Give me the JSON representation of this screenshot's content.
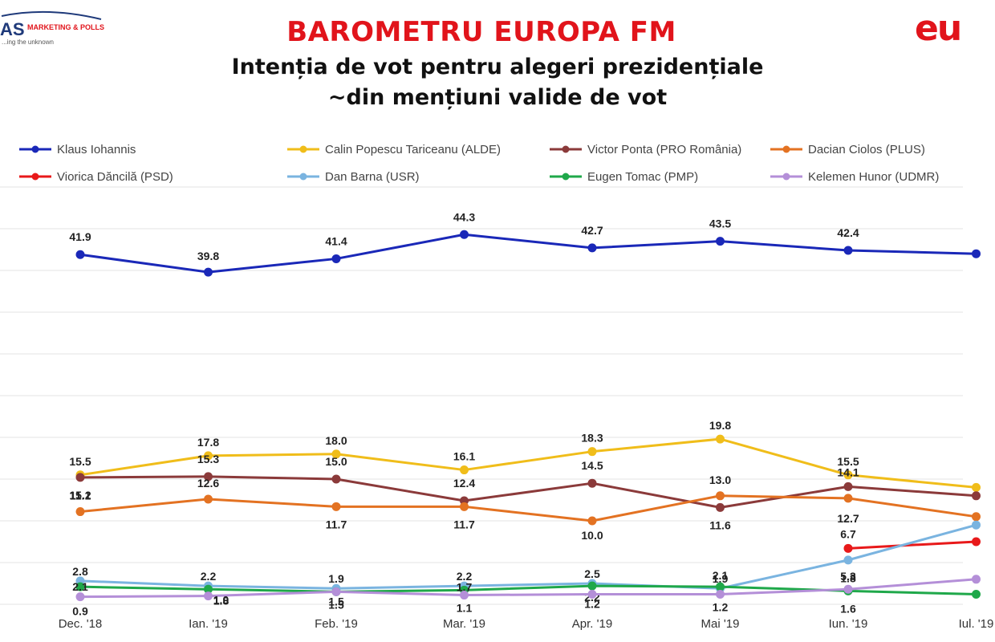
{
  "header": {
    "title": "BAROMETRU EUROPA FM",
    "subtitle_line1": "Intenția de vot pentru alegeri prezidențiale",
    "subtitle_line2": "~din mențiuni valide de vot"
  },
  "logos": {
    "left_text_big": "AS",
    "left_text_small": "MARKETING & POLLS",
    "left_tagline": "...ing the unknown",
    "right_text": "eu"
  },
  "colors": {
    "title": "#e1141b",
    "grid": "#e3e3e3"
  },
  "chart_data": {
    "type": "line",
    "categories": [
      "Dec. '18",
      "Ian. '19",
      "Feb. '19",
      "Mar. '19",
      "Apr. '19",
      "Mai '19",
      "Iun. '19",
      "Iul. '19"
    ],
    "ylim": [
      0,
      50
    ],
    "grid": true,
    "legend_position": "top",
    "series": [
      {
        "name": "Klaus Iohannis",
        "color": "#1a28b8",
        "values": [
          41.9,
          39.8,
          41.4,
          44.3,
          42.7,
          43.5,
          42.4,
          42.0
        ],
        "labels": [
          "41.9",
          "39.8",
          "41.4",
          "44.3",
          "42.7",
          "43.5",
          "42.4",
          null
        ]
      },
      {
        "name": "Calin Popescu Tariceanu (ALDE)",
        "color": "#f0bd1a",
        "values": [
          15.5,
          17.8,
          18.0,
          16.1,
          18.3,
          19.8,
          15.5,
          14.0
        ],
        "labels": [
          "15.5",
          "17.8",
          "18.0",
          "16.1",
          "18.3",
          "19.8",
          "15.5",
          null
        ]
      },
      {
        "name": "Victor Ponta (PRO România)",
        "color": "#8b3a3a",
        "values": [
          15.2,
          15.3,
          15.0,
          12.4,
          14.5,
          11.6,
          14.1,
          13.0
        ],
        "labels": [
          "15.2",
          "15.3",
          "15.0",
          "12.4",
          "14.5",
          "11.6",
          "14.1",
          null
        ]
      },
      {
        "name": "Dacian Ciolos (PLUS)",
        "color": "#e37222",
        "values": [
          11.1,
          12.6,
          11.7,
          11.7,
          10.0,
          13.0,
          12.7,
          10.5
        ],
        "labels": [
          "11.1",
          "12.6",
          "11.7",
          "11.7",
          "10.0",
          "13.0",
          "12.7",
          null
        ]
      },
      {
        "name": "Viorica Dăncilă (PSD)",
        "color": "#e8191a",
        "values": [
          null,
          null,
          null,
          null,
          null,
          null,
          6.7,
          7.5
        ],
        "labels": [
          null,
          null,
          null,
          null,
          null,
          null,
          "6.7",
          null
        ]
      },
      {
        "name": "Dan Barna (USR)",
        "color": "#7ab4e0",
        "values": [
          2.8,
          2.2,
          1.9,
          2.2,
          2.5,
          1.9,
          5.3,
          9.5
        ],
        "labels": [
          "2.8",
          "2.2",
          "1.9",
          "2.2",
          "2.5",
          "1.9",
          "5.3",
          null
        ]
      },
      {
        "name": "Eugen Tomac (PMP)",
        "color": "#1fa84a",
        "values": [
          2.1,
          1.8,
          1.5,
          1.7,
          2.2,
          2.1,
          1.6,
          1.2
        ],
        "labels": [
          "2.1",
          "1.8",
          "1.5",
          "1.7",
          "2.2",
          "2.1",
          "1.6",
          null
        ]
      },
      {
        "name": "Kelemen Hunor (UDMR)",
        "color": "#b48fd8",
        "values": [
          0.9,
          1.0,
          1.5,
          1.1,
          1.2,
          1.2,
          1.8,
          3.0
        ],
        "labels": [
          "0.9",
          "1.0",
          "1.5",
          "1.1",
          "1.2",
          "1.2",
          "1.8",
          null
        ]
      }
    ]
  }
}
